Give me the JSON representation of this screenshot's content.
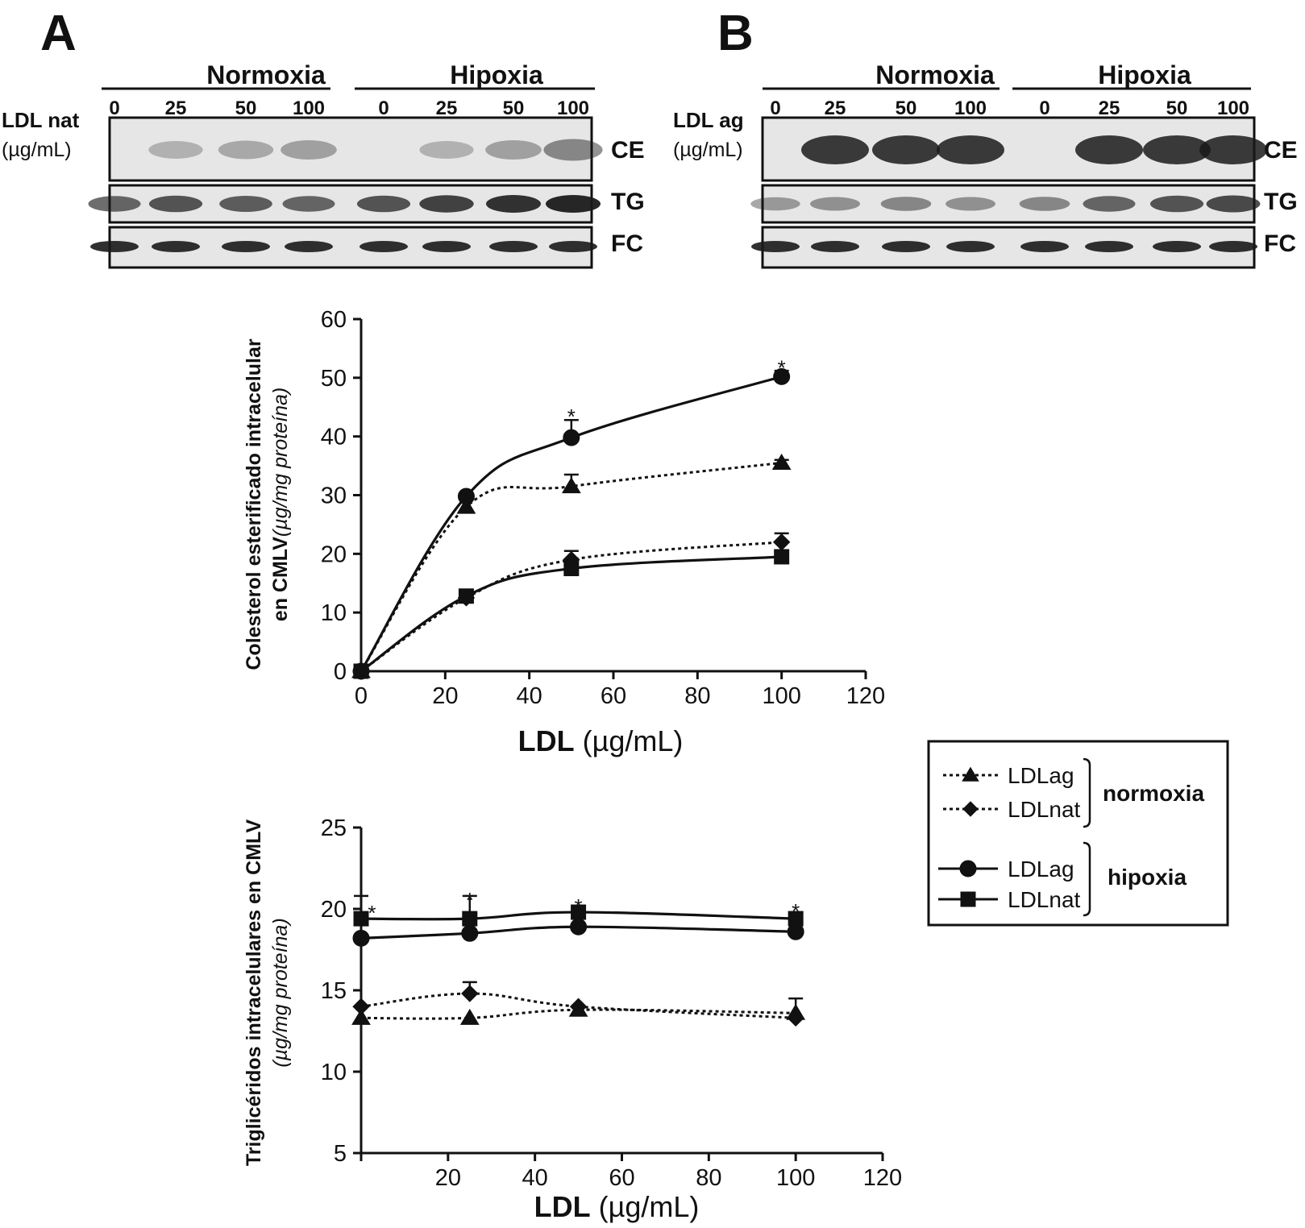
{
  "panels": {
    "A": {
      "letter": "A",
      "conditions": [
        "Normoxia",
        "Hipoxia"
      ],
      "lanes": [
        "0",
        "25",
        "50",
        "100",
        "0",
        "25",
        "50",
        "100"
      ],
      "side_label": "LDL nat",
      "side_unit": "(µg/mL)",
      "bands": [
        "CE",
        "TG",
        "FC"
      ]
    },
    "B": {
      "letter": "B",
      "conditions": [
        "Normoxia",
        "Hipoxia"
      ],
      "lanes": [
        "0",
        "25",
        "50",
        "100",
        "0",
        "25",
        "50",
        "100"
      ],
      "side_label": "LDL ag",
      "side_unit": "(µg/mL)",
      "bands": [
        "CE",
        "TG",
        "FC"
      ]
    }
  },
  "legend": {
    "normoxia_label": "normoxia",
    "hipoxia_label": "hipoxia",
    "entries": [
      {
        "label": "LDLag",
        "group": "normoxia",
        "marker": "triangle",
        "line": "dotted"
      },
      {
        "label": "LDLnat",
        "group": "normoxia",
        "marker": "diamond",
        "line": "dotted"
      },
      {
        "label": "LDLag",
        "group": "hipoxia",
        "marker": "circle",
        "line": "solid"
      },
      {
        "label": "LDLnat",
        "group": "hipoxia",
        "marker": "square",
        "line": "solid"
      }
    ]
  },
  "colors": {
    "ink": "#111111",
    "blot_bg": "#e6e6e6",
    "band": "#1a1a1a"
  },
  "chart_data": [
    {
      "type": "line",
      "ylabel_main": "Colesterol esterificado intracelular",
      "ylabel_line2": "en CMLV",
      "ylabel_unit": "(µg/mg proteína)",
      "xlabel_main": "LDL",
      "xlabel_unit": "(µg/mL)",
      "xlim": [
        0,
        120
      ],
      "ylim": [
        0,
        60
      ],
      "xticks": [
        0,
        20,
        40,
        60,
        80,
        100,
        120
      ],
      "yticks": [
        0,
        10,
        20,
        30,
        40,
        50,
        60
      ],
      "series": [
        {
          "key": "norm_ag",
          "marker": "triangle",
          "line": "dotted",
          "x": [
            0,
            25,
            50,
            100
          ],
          "y": [
            0,
            28,
            31.5,
            35.5
          ],
          "err": [
            0,
            0,
            2,
            0.5
          ]
        },
        {
          "key": "norm_nat",
          "marker": "diamond",
          "line": "dotted",
          "x": [
            0,
            25,
            50,
            100
          ],
          "y": [
            0,
            12.5,
            19,
            22
          ],
          "err": [
            0,
            0,
            1.5,
            1.5
          ]
        },
        {
          "key": "hip_ag",
          "marker": "circle",
          "line": "solid",
          "x": [
            0,
            25,
            50,
            100
          ],
          "y": [
            0,
            29.8,
            39.8,
            50.2
          ],
          "err": [
            0,
            0,
            3,
            1
          ]
        },
        {
          "key": "hip_nat",
          "marker": "square",
          "line": "solid",
          "x": [
            0,
            25,
            50,
            100
          ],
          "y": [
            0,
            12.8,
            17.5,
            19.5
          ],
          "err": [
            0,
            0,
            0.5,
            0.5
          ]
        }
      ],
      "annotations": [
        {
          "text": "*",
          "x": 50,
          "y": 43.5
        },
        {
          "text": "*",
          "x": 100,
          "y": 51.8
        }
      ]
    },
    {
      "type": "line",
      "ylabel_main": "Triglicéridos intracelulares en CMLV",
      "ylabel_unit": "(µg/mg proteína)",
      "xlabel_main": "LDL",
      "xlabel_unit": "(µg/mL)",
      "xlim": [
        0,
        120
      ],
      "ylim": [
        5,
        25
      ],
      "xticks": [
        20,
        40,
        60,
        80,
        100,
        120
      ],
      "yticks": [
        5,
        10,
        15,
        20,
        25
      ],
      "series": [
        {
          "key": "norm_ag",
          "marker": "triangle",
          "line": "dotted",
          "x": [
            0,
            25,
            50,
            100
          ],
          "y": [
            13.3,
            13.3,
            13.8,
            13.6
          ],
          "err": [
            0,
            0,
            0,
            0
          ]
        },
        {
          "key": "norm_nat",
          "marker": "diamond",
          "line": "dotted",
          "x": [
            0,
            25,
            50,
            100
          ],
          "y": [
            14,
            14.8,
            14,
            13.3
          ],
          "err": [
            0,
            0.7,
            0,
            1.2
          ]
        },
        {
          "key": "hip_ag",
          "marker": "circle",
          "line": "solid",
          "x": [
            0,
            25,
            50,
            100
          ],
          "y": [
            18.2,
            18.5,
            18.9,
            18.6
          ],
          "err": [
            0,
            0,
            0,
            0
          ]
        },
        {
          "key": "hip_nat",
          "marker": "square",
          "line": "solid",
          "x": [
            0,
            25,
            50,
            100
          ],
          "y": [
            19.4,
            19.4,
            19.8,
            19.4
          ],
          "err": [
            1.4,
            1.4,
            0,
            0
          ]
        }
      ],
      "annotations": [
        {
          "text": "*",
          "x": 2.5,
          "y": 19.8
        },
        {
          "text": "*",
          "x": 25,
          "y": 20.6
        },
        {
          "text": "*",
          "x": 50,
          "y": 20.2
        },
        {
          "text": "*",
          "x": 100,
          "y": 19.9
        }
      ]
    }
  ]
}
